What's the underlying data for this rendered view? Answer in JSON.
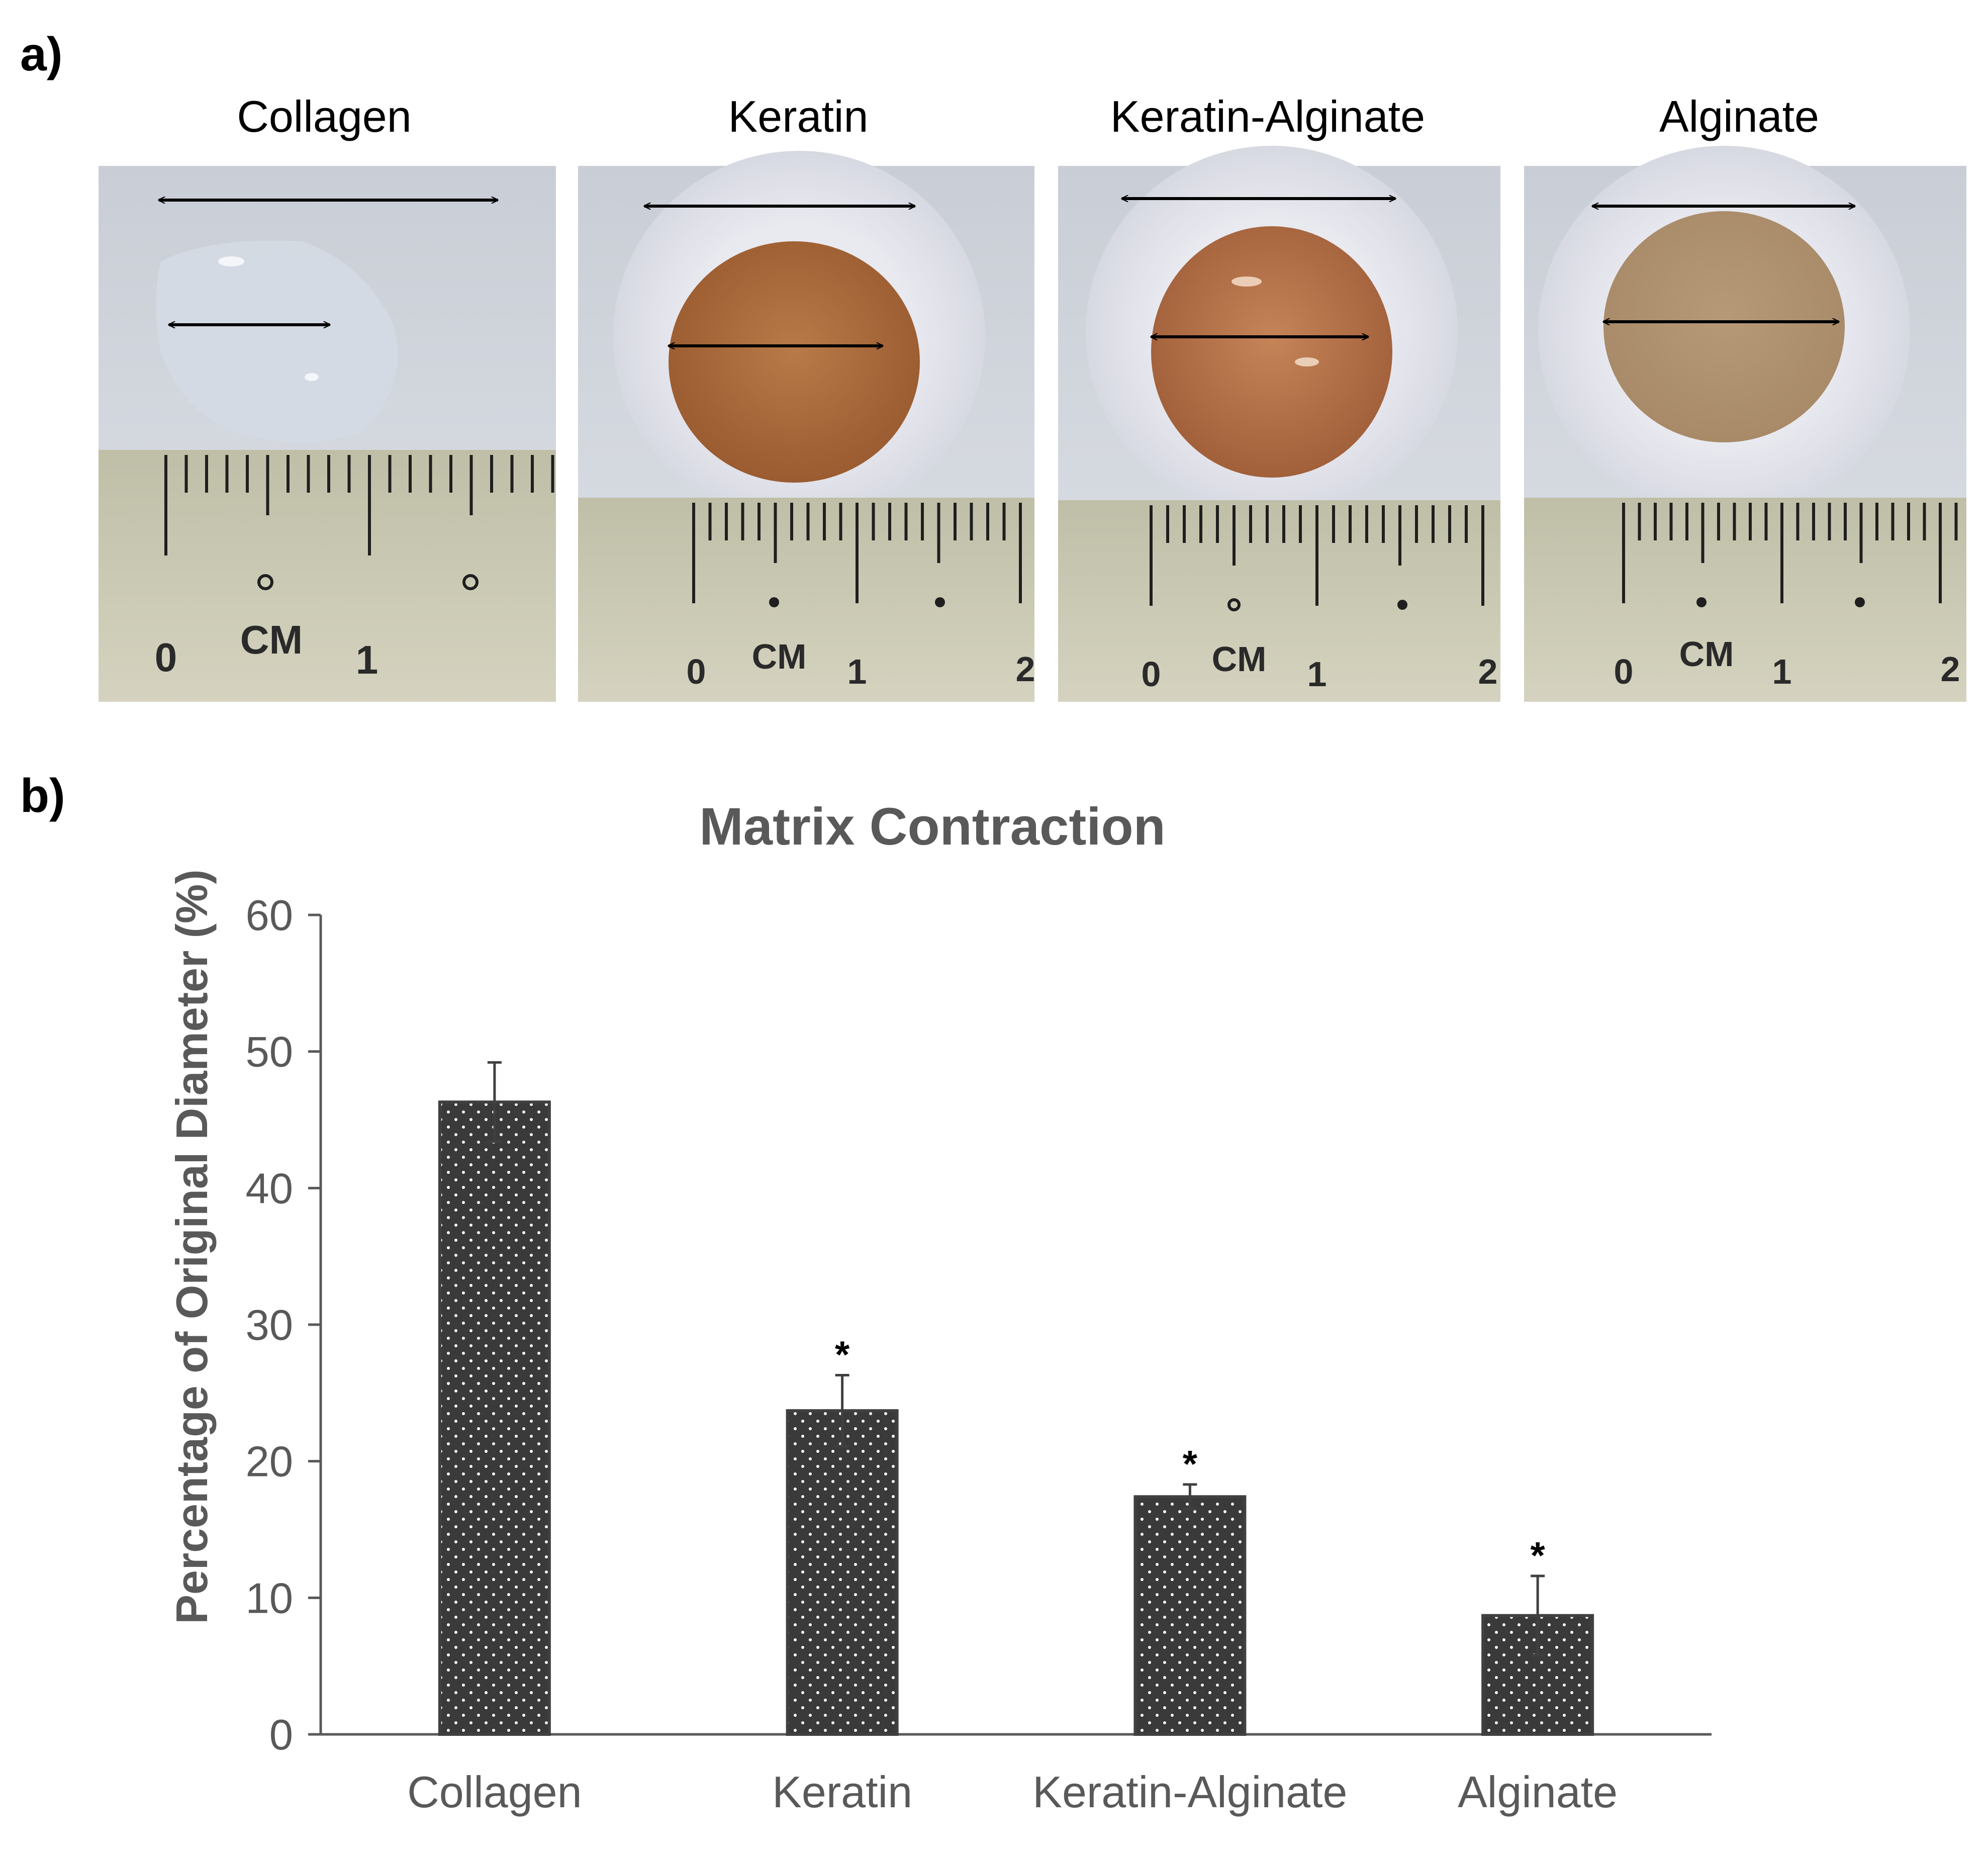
{
  "panel_a": {
    "label": "a)",
    "photos": [
      {
        "title": "Collagen"
      },
      {
        "title": "Keratin"
      },
      {
        "title": "Keratin-Alginate"
      },
      {
        "title": "Alginate"
      }
    ],
    "ruler_unit": "CM",
    "ruler_numbers": [
      "0",
      "1",
      "2"
    ]
  },
  "panel_b": {
    "label": "b)"
  },
  "chart_data": {
    "type": "bar",
    "title": "Matrix Contraction",
    "xlabel": "",
    "ylabel": "Percentage of Original Diameter (%)",
    "categories": [
      "Collagen",
      "Keratin",
      "Keratin-Alginate",
      "Alginate"
    ],
    "values": [
      46.3,
      23.7,
      17.4,
      8.7
    ],
    "errors": [
      2.9,
      2.6,
      0.9,
      2.9
    ],
    "significance": [
      "",
      "*",
      "*",
      "*"
    ],
    "ylim": [
      0,
      60
    ],
    "yticks": [
      0,
      10,
      20,
      30,
      40,
      50,
      60
    ],
    "grid": false,
    "legend": "none",
    "bar_color": "#3a3a3a",
    "bar_pattern": "white dots"
  }
}
